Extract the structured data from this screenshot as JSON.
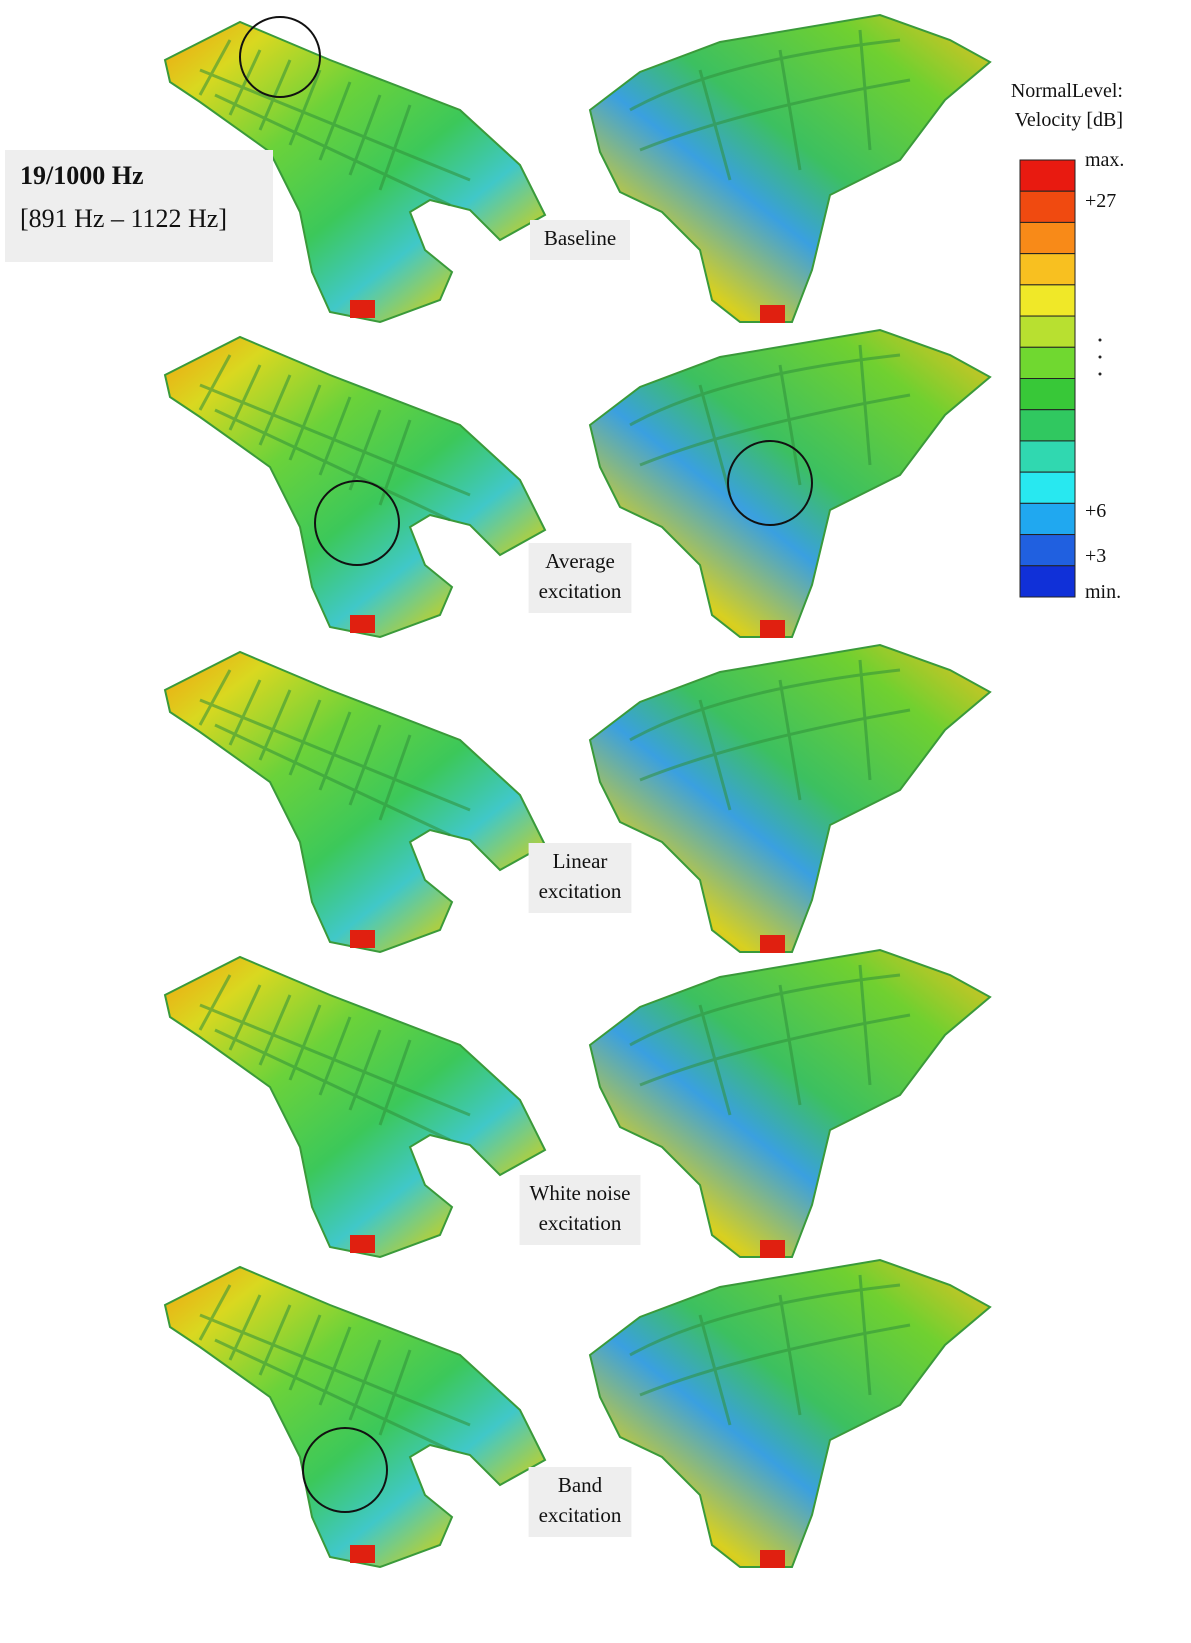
{
  "header": {
    "title": "19/1000 Hz",
    "subtitle": "[891 Hz – 1122 Hz]"
  },
  "legend": {
    "title": [
      "NormalLevel:",
      "Velocity [dB]"
    ],
    "labels": [
      "max.",
      "+27",
      "+6",
      "+3",
      "min."
    ]
  },
  "panels": [
    {
      "label": [
        "Baseline"
      ]
    },
    {
      "label": [
        "Average",
        "excitation"
      ]
    },
    {
      "label": [
        "Linear",
        "excitation"
      ]
    },
    {
      "label": [
        "White noise",
        "excitation"
      ]
    },
    {
      "label": [
        "Band",
        "excitation"
      ]
    }
  ]
}
